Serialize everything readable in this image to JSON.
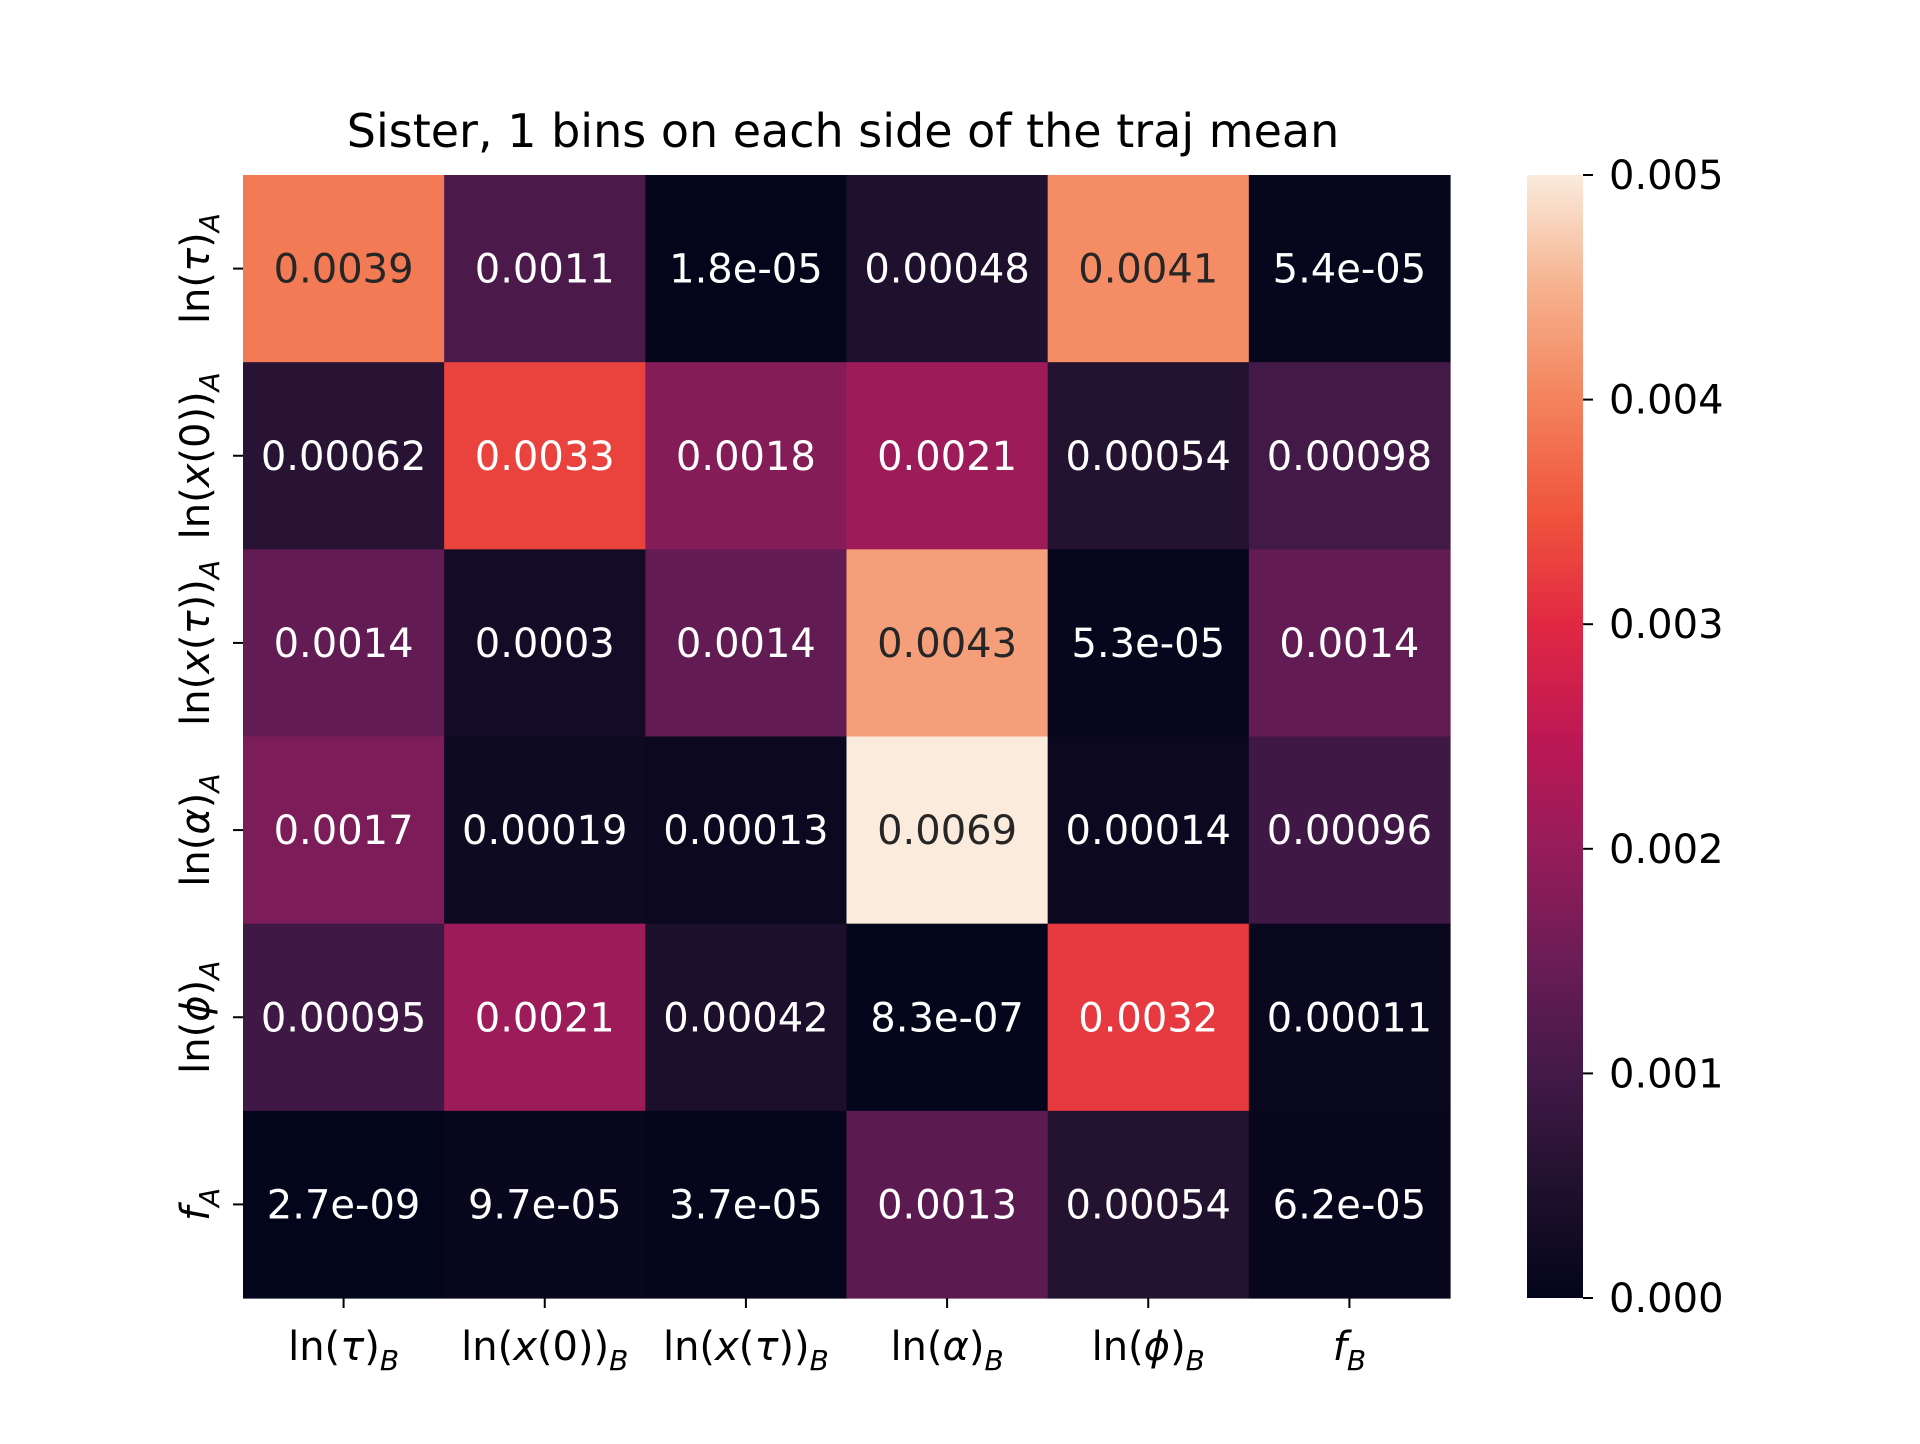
{
  "chart_data": {
    "type": "heatmap",
    "title": "Sister, 1 bins on each side of the traj mean",
    "x_labels": [
      {
        "base": "ln(",
        "var": "τ",
        "close": ")",
        "sub": "B"
      },
      {
        "base": "ln(",
        "var": "x",
        "mid": "(0))",
        "sub": "B"
      },
      {
        "base": "ln(",
        "var": "x",
        "mid": "(",
        "var2": "τ",
        "close": "))",
        "sub": "B"
      },
      {
        "base": "ln(",
        "var": "α",
        "close": ")",
        "sub": "B"
      },
      {
        "base": "ln(",
        "var": "ϕ",
        "close": ")",
        "sub": "B"
      },
      {
        "base": "",
        "var": "f",
        "close": "",
        "sub": "B"
      }
    ],
    "y_labels": [
      {
        "base": "ln(",
        "var": "τ",
        "close": ")",
        "sub": "A"
      },
      {
        "base": "ln(",
        "var": "x",
        "mid": "(0))",
        "sub": "A"
      },
      {
        "base": "ln(",
        "var": "x",
        "mid": "(",
        "var2": "τ",
        "close": "))",
        "sub": "A"
      },
      {
        "base": "ln(",
        "var": "α",
        "close": ")",
        "sub": "A"
      },
      {
        "base": "ln(",
        "var": "ϕ",
        "close": ")",
        "sub": "A"
      },
      {
        "base": "",
        "var": "f",
        "close": "",
        "sub": "A"
      }
    ],
    "values": [
      [
        0.0039,
        0.0011,
        1.8e-05,
        0.00048,
        0.0041,
        5.4e-05
      ],
      [
        0.00062,
        0.0033,
        0.0018,
        0.0021,
        0.00054,
        0.00098
      ],
      [
        0.0014,
        0.0003,
        0.0014,
        0.0043,
        5.3e-05,
        0.0014
      ],
      [
        0.0017,
        0.00019,
        0.00013,
        0.0069,
        0.00014,
        0.00096
      ],
      [
        0.00095,
        0.0021,
        0.00042,
        8.3e-07,
        0.0032,
        0.00011
      ],
      [
        2.7e-09,
        9.7e-05,
        3.7e-05,
        0.0013,
        0.00054,
        6.2e-05
      ]
    ],
    "annotations": [
      [
        "0.0039",
        "0.0011",
        "1.8e-05",
        "0.00048",
        "0.0041",
        "5.4e-05"
      ],
      [
        "0.00062",
        "0.0033",
        "0.0018",
        "0.0021",
        "0.00054",
        "0.00098"
      ],
      [
        "0.0014",
        "0.0003",
        "0.0014",
        "0.0043",
        "5.3e-05",
        "0.0014"
      ],
      [
        "0.0017",
        "0.00019",
        "0.00013",
        "0.0069",
        "0.00014",
        "0.00096"
      ],
      [
        "0.00095",
        "0.0021",
        "0.00042",
        "8.3e-07",
        "0.0032",
        "0.00011"
      ],
      [
        "2.7e-09",
        "9.7e-05",
        "3.7e-05",
        "0.0013",
        "0.00054",
        "6.2e-05"
      ]
    ],
    "colorbar": {
      "range": [
        0,
        0.005
      ],
      "ticks": [
        0,
        0.001,
        0.002,
        0.003,
        0.004,
        0.005
      ],
      "tick_labels": [
        "0.000",
        "0.001",
        "0.002",
        "0.003",
        "0.004",
        "0.005"
      ]
    },
    "colormap": "rocket",
    "grid": false
  }
}
